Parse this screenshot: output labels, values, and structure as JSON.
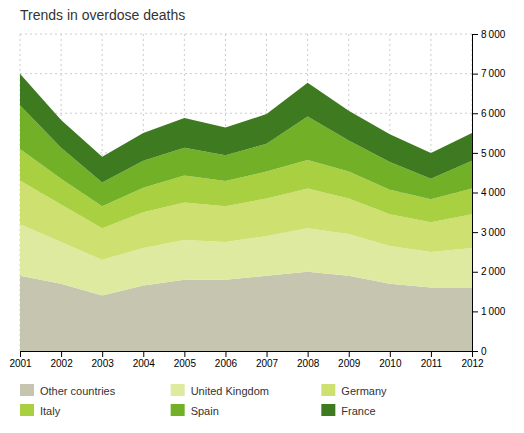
{
  "chart_data": {
    "type": "area",
    "stacked": true,
    "title": "Trends in overdose deaths",
    "x": [
      2001,
      2002,
      2003,
      2004,
      2005,
      2006,
      2007,
      2008,
      2009,
      2010,
      2011,
      2012
    ],
    "series": [
      {
        "name": "Other countries",
        "color": "#c5c5b0",
        "values": [
          1900,
          1700,
          1400,
          1650,
          1800,
          1800,
          1900,
          2000,
          1900,
          1700,
          1600,
          1600
        ]
      },
      {
        "name": "United Kingdom",
        "color": "#ddeaa0",
        "values": [
          1300,
          1050,
          900,
          950,
          1000,
          950,
          1000,
          1100,
          1050,
          950,
          900,
          1000
        ]
      },
      {
        "name": "Germany",
        "color": "#cde070",
        "values": [
          1100,
          950,
          800,
          900,
          950,
          900,
          950,
          1000,
          900,
          800,
          750,
          850
        ]
      },
      {
        "name": "Italy",
        "color": "#a8d040",
        "values": [
          800,
          650,
          550,
          620,
          680,
          640,
          680,
          720,
          680,
          620,
          580,
          650
        ]
      },
      {
        "name": "Spain",
        "color": "#72b028",
        "values": [
          1100,
          780,
          600,
          680,
          700,
          650,
          700,
          1100,
          780,
          700,
          520,
          700
        ]
      },
      {
        "name": "France",
        "color": "#3d7a20",
        "values": [
          800,
          700,
          650,
          700,
          750,
          700,
          750,
          850,
          750,
          700,
          650,
          700
        ]
      }
    ],
    "xlim": [
      2001,
      2012
    ],
    "xticks": [
      2001,
      2002,
      2003,
      2004,
      2005,
      2006,
      2007,
      2008,
      2009,
      2010,
      2011,
      2012
    ],
    "ylim": [
      0,
      8000
    ],
    "yticks": [
      0,
      {
        "value": 1000,
        "label": "1 000"
      },
      {
        "value": 2000,
        "label": "2 000"
      },
      {
        "value": 3000,
        "label": "3 000"
      },
      {
        "value": 4000,
        "label": "4 000"
      },
      {
        "value": 5000,
        "label": "5 000"
      },
      {
        "value": 6000,
        "label": "6 000"
      },
      {
        "value": 7000,
        "label": "7 000"
      },
      {
        "value": 8000,
        "label": "8 000"
      }
    ],
    "grid": true,
    "legend": "bottom"
  }
}
